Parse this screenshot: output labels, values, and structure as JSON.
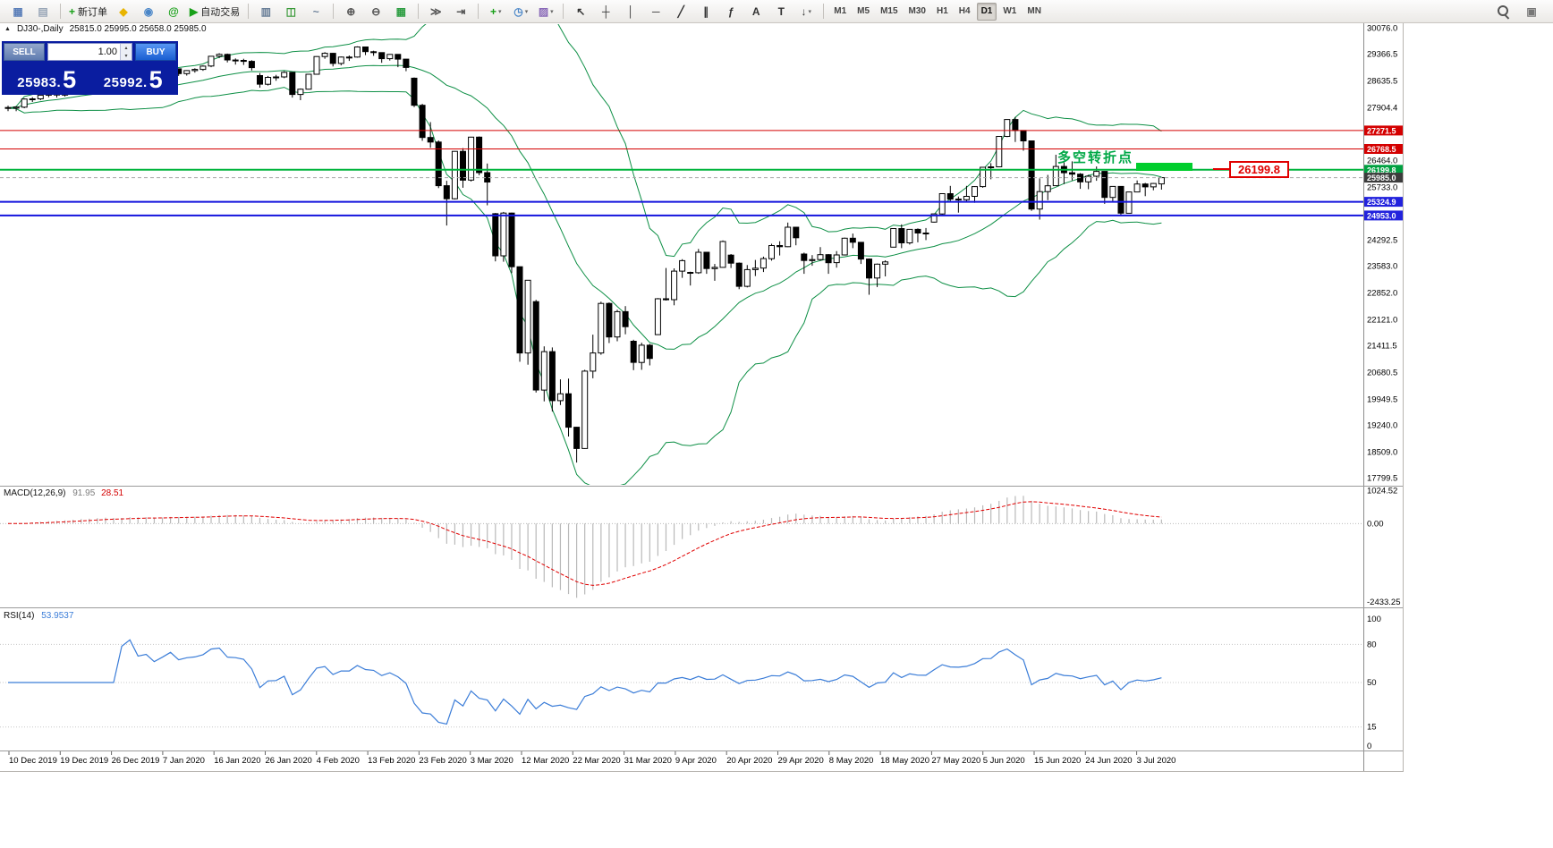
{
  "icons": {
    "panel_toggle": "▲",
    "spin_up": "▴",
    "spin_down": "▾",
    "dropdown": "▾"
  },
  "colors": {
    "toolbar_bg": "#f0eeec",
    "panel_navy": "#0a1da0",
    "buy_blue": "#1a5ed2",
    "sell_gray": "#5f7bb0",
    "bull": "#ffffff",
    "bear": "#000000",
    "wick": "#000000",
    "bollinger": "#0d8f45",
    "line_red": "#d40000",
    "line_green": "#00b43c",
    "line_blue": "#1414dd",
    "current_price_gray": "#a8a8a8",
    "macd_hist": "#b9b9b9",
    "macd_signal": "#e00000",
    "rsi_line": "#3b7dd8",
    "tag_red": "#d40000",
    "tag_green": "#00a040",
    "tag_black": "#3c3c3c",
    "tag_blue": "#2222dd"
  },
  "toolbar": {
    "groups": [
      {
        "name": "files",
        "items": [
          {
            "name": "new-chart-icon",
            "glyph": "▦",
            "color": "#5b7fb9"
          },
          {
            "name": "profiles-icon",
            "glyph": "▤",
            "color": "#9aa7b8"
          }
        ]
      },
      {
        "name": "trade",
        "items": [
          {
            "name": "new-order-button",
            "glyph": "+",
            "color": "#18a018",
            "label": "新订单"
          },
          {
            "name": "metaeditor-icon",
            "glyph": "◆",
            "color": "#e8b400"
          },
          {
            "name": "market-icon",
            "glyph": "◉",
            "color": "#4a86c8"
          },
          {
            "name": "community-icon",
            "glyph": "@",
            "color": "#18a018"
          },
          {
            "name": "autotrading-button",
            "glyph": "▶",
            "color": "#18a018",
            "label": "自动交易"
          }
        ]
      },
      {
        "name": "chart-types",
        "items": [
          {
            "name": "bar-chart-icon",
            "glyph": "▥",
            "color": "#6a7f98"
          },
          {
            "name": "candlestick-chart-icon",
            "glyph": "◫",
            "color": "#3a9a3a"
          },
          {
            "name": "line-chart-icon",
            "glyph": "~",
            "color": "#6a7f98"
          }
        ]
      },
      {
        "name": "zoom",
        "items": [
          {
            "name": "zoom-in-icon",
            "glyph": "⊕",
            "color": "#555555"
          },
          {
            "name": "zoom-out-icon",
            "glyph": "⊖",
            "color": "#555555"
          },
          {
            "name": "tile-windows-icon",
            "glyph": "▦",
            "color": "#2f9e44"
          }
        ]
      },
      {
        "name": "scroll",
        "items": [
          {
            "name": "auto-scroll-icon",
            "glyph": "≫",
            "color": "#555555"
          },
          {
            "name": "chart-shift-icon",
            "glyph": "⇥",
            "color": "#555555"
          }
        ]
      },
      {
        "name": "objects",
        "items": [
          {
            "name": "indicators-icon",
            "glyph": "+",
            "color": "#18a018",
            "dropdown": true
          },
          {
            "name": "periods-icon",
            "glyph": "◷",
            "color": "#4a86c8",
            "dropdown": true
          },
          {
            "name": "templates-icon",
            "glyph": "▨",
            "color": "#8a6ab8",
            "dropdown": true
          }
        ]
      },
      {
        "name": "line-studies",
        "items": [
          {
            "name": "cursor-icon",
            "glyph": "↖",
            "color": "#333333"
          },
          {
            "name": "crosshair-icon",
            "glyph": "┼",
            "color": "#333333"
          },
          {
            "name": "vertical-line-icon",
            "glyph": "│",
            "color": "#333333"
          },
          {
            "name": "horizontal-line-icon",
            "glyph": "─",
            "color": "#333333"
          },
          {
            "name": "trendline-icon",
            "glyph": "╱",
            "color": "#333333"
          },
          {
            "name": "channel-icon",
            "glyph": "∥",
            "color": "#333333"
          },
          {
            "name": "fibonacci-icon",
            "glyph": "ƒ",
            "color": "#333333"
          },
          {
            "name": "text-icon",
            "glyph": "A",
            "color": "#333333"
          },
          {
            "name": "label-icon",
            "glyph": "T",
            "color": "#333333"
          },
          {
            "name": "arrows-icon",
            "glyph": "↓",
            "color": "#333333",
            "dropdown": true
          }
        ]
      },
      {
        "name": "timeframes",
        "items": [
          {
            "name": "tf-m1",
            "glyph": "M1",
            "tf": true
          },
          {
            "name": "tf-m5",
            "glyph": "M5",
            "tf": true
          },
          {
            "name": "tf-m15",
            "glyph": "M15",
            "tf": true
          },
          {
            "name": "tf-m30",
            "glyph": "M30",
            "tf": true
          },
          {
            "name": "tf-h1",
            "glyph": "H1",
            "tf": true
          },
          {
            "name": "tf-h4",
            "glyph": "H4",
            "tf": true
          },
          {
            "name": "tf-d1",
            "glyph": "D1",
            "tf": true,
            "selected": true
          },
          {
            "name": "tf-w1",
            "glyph": "W1",
            "tf": true
          },
          {
            "name": "tf-mn",
            "glyph": "MN",
            "tf": true
          }
        ]
      }
    ],
    "right_items": [
      {
        "name": "search-icon",
        "magnifier": true
      },
      {
        "name": "quick-panel-icon",
        "glyph": "▣",
        "color": "#777777"
      }
    ]
  },
  "trade_panel": {
    "sell_label": "SELL",
    "buy_label": "BUY",
    "volume": "1.00",
    "sell_price_main": "25983.",
    "sell_price_pip": "5",
    "buy_price_main": "25992.",
    "buy_price_pip": "5"
  },
  "chart_data": {
    "type": "candlestick",
    "symbol_header": {
      "symbol": "DJ30-,Daily",
      "ohlc": "25815.0 25995.0 25658.0 25985.0"
    },
    "price_axis": [
      "30076.0",
      "29366.5",
      "28635.5",
      "27904.4",
      "26464.0",
      "25733.0",
      "24292.5",
      "23583.0",
      "22852.0",
      "22121.0",
      "21411.5",
      "20680.5",
      "19949.5",
      "19240.0",
      "18509.0",
      "17799.5"
    ],
    "price_tags": [
      {
        "value": "27271.5",
        "color": "#d40000"
      },
      {
        "value": "26768.5",
        "color": "#d40000"
      },
      {
        "value": "26199.8",
        "color": "#00a040"
      },
      {
        "value": "25985.0",
        "color": "#3c3c3c"
      },
      {
        "value": "25324.9",
        "color": "#2222dd"
      },
      {
        "value": "24953.0",
        "color": "#2222dd"
      }
    ],
    "hlines": [
      {
        "value": 27271.5,
        "color": "#d40000",
        "width": 1
      },
      {
        "value": 26768.5,
        "color": "#d40000",
        "width": 1
      },
      {
        "value": 26199.8,
        "color": "#00b43c",
        "width": 2
      },
      {
        "value": 25985.0,
        "color": "#a8a8a8",
        "width": 1,
        "dash": "4,3"
      },
      {
        "value": 25324.9,
        "color": "#1414dd",
        "width": 2
      },
      {
        "value": 24953.0,
        "color": "#1414dd",
        "width": 2
      }
    ],
    "date_axis": [
      "10 Dec 2019",
      "19 Dec 2019",
      "26 Dec 2019",
      "7 Jan 2020",
      "16 Jan 2020",
      "26 Jan 2020",
      "4 Feb 2020",
      "13 Feb 2020",
      "23 Feb 2020",
      "3 Mar 2020",
      "12 Mar 2020",
      "22 Mar 2020",
      "31 Mar 2020",
      "9 Apr 2020",
      "20 Apr 2020",
      "29 Apr 2020",
      "8 May 2020",
      "18 May 2020",
      "27 May 2020",
      "5 Jun 2020",
      "15 Jun 2020",
      "24 Jun 2020",
      "3 Jul 2020"
    ],
    "indicators": {
      "bollinger": {
        "period": 20,
        "deviation": 2
      },
      "macd": {
        "label": "MACD(12,26,9)",
        "main_value": "91.95",
        "signal_value": "28.51",
        "axis": [
          "1024.52",
          "0.00",
          "-2433.25"
        ]
      },
      "rsi": {
        "label": "RSI(14)",
        "value": "53.9537",
        "axis": [
          "100",
          "80",
          "50",
          "15",
          "0"
        ]
      }
    },
    "annotations": {
      "turning_point_text": "多空转折点",
      "price_callout": "26199.8",
      "highlight_rect_price": 26199.8
    },
    "candles": [
      [
        27900,
        27950,
        27800,
        27882
      ],
      [
        27882,
        27930,
        27800,
        27911
      ],
      [
        27911,
        28150,
        27880,
        28132
      ],
      [
        28132,
        28180,
        28050,
        28135
      ],
      [
        28135,
        28260,
        28100,
        28235
      ],
      [
        28235,
        28300,
        28180,
        28267
      ],
      [
        28267,
        28290,
        28170,
        28239
      ],
      [
        28239,
        28400,
        28200,
        28377
      ],
      [
        28377,
        28470,
        28340,
        28455
      ],
      [
        28455,
        28570,
        28420,
        28551
      ],
      [
        28551,
        28560,
        28460,
        28515
      ],
      [
        28515,
        28640,
        28480,
        28621
      ],
      [
        28621,
        28680,
        28580,
        28645
      ],
      [
        28645,
        28660,
        28420,
        28462
      ],
      [
        28462,
        28560,
        28430,
        28538
      ],
      [
        28538,
        28890,
        28520,
        28868
      ],
      [
        28868,
        28880,
        28560,
        28634
      ],
      [
        28634,
        28720,
        28540,
        28703
      ],
      [
        28703,
        28730,
        28520,
        28583
      ],
      [
        28583,
        28760,
        28550,
        28745
      ],
      [
        28745,
        28970,
        28720,
        28956
      ],
      [
        28956,
        28960,
        28760,
        28823
      ],
      [
        28823,
        28920,
        28770,
        28907
      ],
      [
        28907,
        28970,
        28850,
        28939
      ],
      [
        28939,
        29050,
        28900,
        29030
      ],
      [
        29030,
        29300,
        29000,
        29297
      ],
      [
        29297,
        29380,
        29250,
        29348
      ],
      [
        29348,
        29370,
        29130,
        29196
      ],
      [
        29196,
        29240,
        29070,
        29186
      ],
      [
        29186,
        29230,
        29060,
        29160
      ],
      [
        29160,
        29190,
        28910,
        28989
      ],
      [
        28770,
        28840,
        28440,
        28535
      ],
      [
        28535,
        28760,
        28500,
        28722
      ],
      [
        28722,
        28790,
        28630,
        28734
      ],
      [
        28734,
        28890,
        28700,
        28859
      ],
      [
        28859,
        28860,
        28170,
        28256
      ],
      [
        28256,
        28420,
        28100,
        28399
      ],
      [
        28399,
        28820,
        28390,
        28807
      ],
      [
        28807,
        29300,
        28800,
        29290
      ],
      [
        29290,
        29410,
        29230,
        29379
      ],
      [
        29379,
        29390,
        29020,
        29102
      ],
      [
        29102,
        29290,
        29050,
        29276
      ],
      [
        29276,
        29320,
        29170,
        29276
      ],
      [
        29276,
        29570,
        29260,
        29551
      ],
      [
        29551,
        29560,
        29330,
        29423
      ],
      [
        29423,
        29450,
        29310,
        29398
      ],
      [
        29398,
        29400,
        29120,
        29232
      ],
      [
        29232,
        29360,
        29180,
        29348
      ],
      [
        29348,
        29350,
        29000,
        29219
      ],
      [
        29219,
        29220,
        28890,
        28992
      ],
      [
        28700,
        28720,
        27910,
        27960
      ],
      [
        27960,
        28000,
        26990,
        27081
      ],
      [
        27081,
        27500,
        26800,
        26957
      ],
      [
        26957,
        27000,
        25700,
        25766
      ],
      [
        25766,
        25900,
        24680,
        25409
      ],
      [
        25409,
        26710,
        25390,
        26703
      ],
      [
        26703,
        26790,
        25710,
        25917
      ],
      [
        25917,
        27100,
        25880,
        27090
      ],
      [
        27090,
        27110,
        26050,
        26121
      ],
      [
        26121,
        26370,
        25230,
        25864
      ],
      [
        25000,
        25020,
        23700,
        23851
      ],
      [
        23851,
        25050,
        23690,
        25018
      ],
      [
        25018,
        25030,
        23380,
        23553
      ],
      [
        23553,
        23560,
        20960,
        21200
      ],
      [
        21200,
        23190,
        20880,
        23185
      ],
      [
        22600,
        22650,
        20120,
        20188
      ],
      [
        20188,
        21380,
        19880,
        21237
      ],
      [
        21237,
        21350,
        19600,
        19898
      ],
      [
        19898,
        20480,
        19780,
        20087
      ],
      [
        20087,
        20500,
        18920,
        19173
      ],
      [
        19173,
        19180,
        18210,
        18591
      ],
      [
        18591,
        20740,
        18580,
        20704
      ],
      [
        20704,
        21700,
        20510,
        21200
      ],
      [
        21200,
        22600,
        21150,
        22552
      ],
      [
        22552,
        22580,
        21470,
        21636
      ],
      [
        21636,
        22380,
        21520,
        22327
      ],
      [
        22327,
        22480,
        21710,
        21917
      ],
      [
        21520,
        21560,
        20730,
        20943
      ],
      [
        20943,
        21480,
        20740,
        21413
      ],
      [
        21413,
        21450,
        20860,
        21052
      ],
      [
        21700,
        22700,
        21690,
        22679
      ],
      [
        22679,
        23520,
        22630,
        22653
      ],
      [
        22653,
        23510,
        22500,
        23433
      ],
      [
        23433,
        23760,
        23250,
        23719
      ],
      [
        23400,
        23420,
        23040,
        23390
      ],
      [
        23390,
        24040,
        23360,
        23949
      ],
      [
        23949,
        23960,
        23360,
        23504
      ],
      [
        23504,
        23630,
        23170,
        23537
      ],
      [
        23537,
        24270,
        23530,
        24242
      ],
      [
        23870,
        23900,
        23520,
        23650
      ],
      [
        23650,
        23670,
        22940,
        23018
      ],
      [
        23018,
        23600,
        22990,
        23475
      ],
      [
        23475,
        23740,
        23300,
        23515
      ],
      [
        23515,
        23830,
        23410,
        23775
      ],
      [
        23775,
        24180,
        23720,
        24133
      ],
      [
        24133,
        24250,
        23860,
        24101
      ],
      [
        24101,
        24760,
        24090,
        24633
      ],
      [
        24633,
        24640,
        24140,
        24345
      ],
      [
        23900,
        23940,
        23360,
        23723
      ],
      [
        23723,
        23870,
        23580,
        23749
      ],
      [
        23749,
        24090,
        23720,
        23883
      ],
      [
        23883,
        23900,
        23360,
        23664
      ],
      [
        23664,
        23980,
        23530,
        23875
      ],
      [
        23875,
        24350,
        23860,
        24331
      ],
      [
        24331,
        24460,
        24060,
        24221
      ],
      [
        24221,
        24230,
        23630,
        23764
      ],
      [
        23764,
        23780,
        22790,
        23247
      ],
      [
        23247,
        23640,
        23000,
        23625
      ],
      [
        23625,
        23730,
        23290,
        23685
      ],
      [
        24090,
        24600,
        24080,
        24597
      ],
      [
        24597,
        24710,
        24060,
        24206
      ],
      [
        24206,
        24580,
        24160,
        24575
      ],
      [
        24575,
        24600,
        24220,
        24474
      ],
      [
        24474,
        24610,
        24280,
        24465
      ],
      [
        24770,
        25000,
        24760,
        24995
      ],
      [
        24995,
        25560,
        24940,
        25548
      ],
      [
        25548,
        25760,
        25320,
        25400
      ],
      [
        25400,
        25470,
        25030,
        25383
      ],
      [
        25383,
        25760,
        25340,
        25475
      ],
      [
        25475,
        25750,
        25300,
        25742
      ],
      [
        25742,
        26280,
        25710,
        26269
      ],
      [
        26269,
        26380,
        25940,
        26281
      ],
      [
        26281,
        27120,
        26280,
        27110
      ],
      [
        27110,
        27580,
        27090,
        27572
      ],
      [
        27572,
        27640,
        26960,
        27272
      ],
      [
        27272,
        27280,
        26720,
        26989
      ],
      [
        26989,
        27000,
        25080,
        25128
      ],
      [
        25128,
        25965,
        24840,
        25605
      ],
      [
        25605,
        26060,
        25370,
        25763
      ],
      [
        25763,
        26610,
        25760,
        26289
      ],
      [
        26289,
        26400,
        25810,
        26119
      ],
      [
        26119,
        26430,
        25910,
        26080
      ],
      [
        26080,
        26110,
        25680,
        25871
      ],
      [
        25871,
        26060,
        25670,
        26024
      ],
      [
        26024,
        26290,
        25900,
        26156
      ],
      [
        26156,
        26160,
        25270,
        25445
      ],
      [
        25445,
        25750,
        25310,
        25745
      ],
      [
        25745,
        25750,
        24970,
        25015
      ],
      [
        25015,
        25600,
        25010,
        25595
      ],
      [
        25595,
        25910,
        25590,
        25812
      ],
      [
        25812,
        25840,
        25480,
        25734
      ],
      [
        25734,
        25840,
        25640,
        25827
      ],
      [
        25815,
        25995,
        25658,
        25985
      ]
    ]
  }
}
